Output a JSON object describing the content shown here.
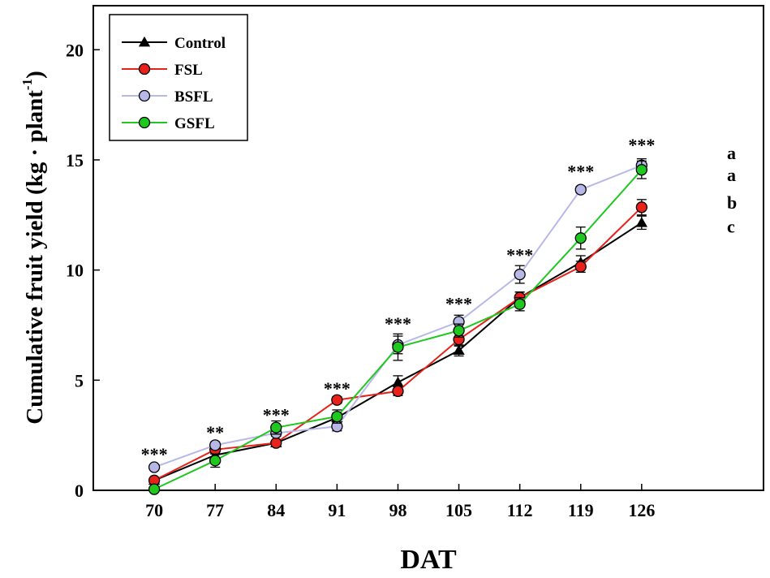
{
  "chart_data": {
    "type": "line",
    "xlabel": "DAT",
    "ylabel": "Cumulative fruit yield (kg · plant",
    "ylabel_sup": "-1",
    "ylabel_close": ")",
    "x": [
      70,
      77,
      84,
      91,
      98,
      105,
      112,
      119,
      126
    ],
    "x_tick_labels": [
      "70",
      "77",
      "84",
      "91",
      "98",
      "105",
      "112",
      "119",
      "126"
    ],
    "xlim": [
      63,
      140
    ],
    "ylim": [
      0,
      22
    ],
    "y_ticks": [
      0,
      5,
      10,
      15,
      20
    ],
    "y_tick_labels": [
      "0",
      "5",
      "10",
      "15",
      "20"
    ],
    "grid": false,
    "legend_position": "top-left",
    "series": [
      {
        "name": "Control",
        "color": "#000000",
        "marker": "triangle",
        "values": [
          0.45,
          1.6,
          2.15,
          3.3,
          4.9,
          6.35,
          8.75,
          10.35,
          12.15
        ],
        "errors": [
          0.1,
          0.15,
          0.1,
          0.2,
          0.3,
          0.25,
          0.25,
          0.3,
          0.3
        ]
      },
      {
        "name": "FSL",
        "color": "#e8221a",
        "marker": "circle",
        "values": [
          0.45,
          1.85,
          2.15,
          4.1,
          4.5,
          6.85,
          8.75,
          10.15,
          12.85
        ],
        "errors": [
          0.1,
          0.15,
          0.1,
          0.15,
          0.2,
          0.3,
          0.25,
          0.25,
          0.35
        ]
      },
      {
        "name": "BSFL",
        "color": "#b8b8e8",
        "marker": "circle",
        "values": [
          1.05,
          2.05,
          2.6,
          2.9,
          6.6,
          7.65,
          9.8,
          13.65,
          14.75
        ],
        "errors": [
          0.1,
          0.15,
          0.15,
          0.2,
          0.4,
          0.3,
          0.4,
          0.15,
          0.3
        ]
      },
      {
        "name": "GSFL",
        "color": "#1ec81e",
        "marker": "circle",
        "values": [
          0.05,
          1.35,
          2.85,
          3.35,
          6.5,
          7.25,
          8.45,
          11.45,
          14.55
        ],
        "errors": [
          0.05,
          0.3,
          0.3,
          0.3,
          0.6,
          0.3,
          0.3,
          0.5,
          0.4
        ]
      }
    ],
    "significance": [
      {
        "x": 70,
        "y": 1.65,
        "label": "***"
      },
      {
        "x": 77,
        "y": 2.65,
        "label": "**"
      },
      {
        "x": 84,
        "y": 3.45,
        "label": "***"
      },
      {
        "x": 91,
        "y": 4.65,
        "label": "***"
      },
      {
        "x": 98,
        "y": 7.6,
        "label": "***"
      },
      {
        "x": 105,
        "y": 8.5,
        "label": "***"
      },
      {
        "x": 112,
        "y": 10.7,
        "label": "***"
      },
      {
        "x": 119,
        "y": 14.5,
        "label": "***"
      },
      {
        "x": 126,
        "y": 15.7,
        "label": "***"
      }
    ],
    "group_letters": [
      {
        "y": 15.3,
        "label": "a"
      },
      {
        "y": 14.3,
        "label": "a"
      },
      {
        "y": 13.05,
        "label": "b"
      },
      {
        "y": 11.95,
        "label": "c"
      }
    ]
  }
}
